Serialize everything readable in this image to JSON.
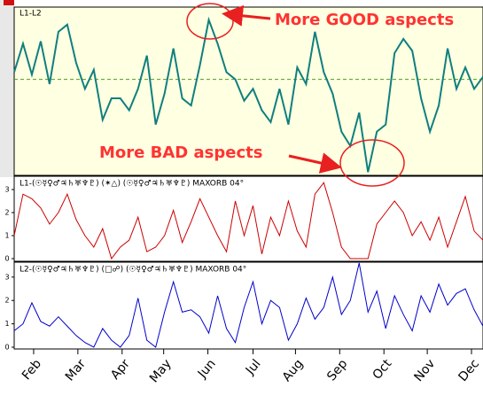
{
  "chart_data": [
    {
      "type": "line",
      "title": "L1-L2",
      "color": "#0f7f7f",
      "xlim": [
        0,
        53
      ],
      "ylim": [
        -4,
        3
      ],
      "refline": {
        "value": 0,
        "color": "#4f9a2a"
      },
      "values": [
        0.3,
        1.5,
        0.2,
        1.6,
        -0.2,
        2.0,
        2.3,
        0.7,
        -0.4,
        0.4,
        -1.7,
        -0.8,
        -0.8,
        -1.3,
        -0.4,
        1.0,
        -1.9,
        -0.6,
        1.3,
        -0.8,
        -1.1,
        0.6,
        2.5,
        1.5,
        0.3,
        0.0,
        -0.9,
        -0.4,
        -1.3,
        -1.8,
        -0.4,
        -1.9,
        0.5,
        -0.2,
        2.0,
        0.3,
        -0.6,
        -2.2,
        -2.8,
        -1.4,
        -3.9,
        -2.2,
        -1.9,
        1.1,
        1.7,
        1.2,
        -0.8,
        -2.2,
        -1.1,
        1.3,
        -0.4,
        0.5,
        -0.4,
        0.1
      ],
      "annotations": [
        {
          "text": "More GOOD aspects"
        },
        {
          "text": "More BAD aspects"
        }
      ]
    },
    {
      "type": "line",
      "title": "L1-(☉☿♀♂♃♄♅♆♇) (✶△) (☉☿♀♂♃♄♅♆♇) MAXORB 04°",
      "color": "#cc0000",
      "xlim": [
        0,
        53
      ],
      "ylim": [
        0,
        3.5
      ],
      "yticks": [
        0,
        1,
        2,
        3
      ],
      "values": [
        1.0,
        2.8,
        2.6,
        2.2,
        1.5,
        2.0,
        2.8,
        1.7,
        1.0,
        0.5,
        1.3,
        0.0,
        0.5,
        0.8,
        1.8,
        0.3,
        0.5,
        1.0,
        2.1,
        0.7,
        1.6,
        2.6,
        1.8,
        1.0,
        0.3,
        2.5,
        1.0,
        2.3,
        0.2,
        1.8,
        1.0,
        2.5,
        1.2,
        0.5,
        2.8,
        3.3,
        2.0,
        0.5,
        0.0,
        0.0,
        0.0,
        1.5,
        2.0,
        2.5,
        2.0,
        1.0,
        1.6,
        0.8,
        1.8,
        0.5,
        1.6,
        2.7,
        1.2,
        0.8
      ]
    },
    {
      "type": "line",
      "title": "L2-(☉☿♀♂♃♄♅♆♇) (□☍) (☉☿♀♂♃♄♅♆♇) MAXORB 04°",
      "color": "#0000cc",
      "xlim": [
        0,
        53
      ],
      "ylim": [
        0,
        3.6
      ],
      "yticks": [
        0,
        1,
        2,
        3
      ],
      "values": [
        0.7,
        1.0,
        1.9,
        1.1,
        0.9,
        1.3,
        0.9,
        0.5,
        0.2,
        0.0,
        0.8,
        0.3,
        0.0,
        0.5,
        2.1,
        0.3,
        0.0,
        1.5,
        2.8,
        1.5,
        1.6,
        1.3,
        0.6,
        2.2,
        0.8,
        0.2,
        1.7,
        2.8,
        1.0,
        2.0,
        1.7,
        0.3,
        1.0,
        2.1,
        1.2,
        1.7,
        3.0,
        1.4,
        2.0,
        3.6,
        1.5,
        2.4,
        0.8,
        2.2,
        1.4,
        0.7,
        2.2,
        1.5,
        2.7,
        1.8,
        2.3,
        2.5,
        1.6,
        0.9
      ],
      "xticks": [
        {
          "value": 2.2,
          "label": "Feb"
        },
        {
          "value": 7.2,
          "label": "Mar"
        },
        {
          "value": 12.2,
          "label": "Apr"
        },
        {
          "value": 16.9,
          "label": "May"
        },
        {
          "value": 21.9,
          "label": "Jun"
        },
        {
          "value": 27,
          "label": "Jul"
        },
        {
          "value": 31.8,
          "label": "Aug"
        },
        {
          "value": 36.8,
          "label": "Sep"
        },
        {
          "value": 41.8,
          "label": "Oct"
        },
        {
          "value": 46.7,
          "label": "Nov"
        },
        {
          "value": 51.7,
          "label": "Dec"
        }
      ]
    }
  ]
}
